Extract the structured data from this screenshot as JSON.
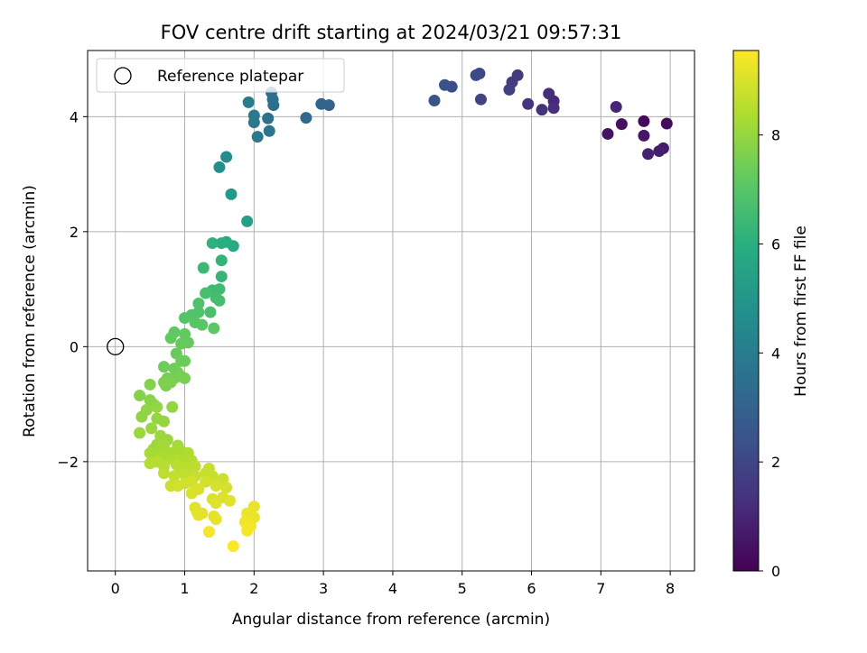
{
  "chart_data": {
    "type": "scatter",
    "title": "FOV centre drift starting at 2024/03/21 09:57:31",
    "xlabel": "Angular distance from reference (arcmin)",
    "ylabel": "Rotation from reference (arcmin)",
    "xlim": [
      -0.4,
      8.35
    ],
    "ylim": [
      -3.9,
      5.15
    ],
    "xticks": [
      0,
      1,
      2,
      3,
      4,
      5,
      6,
      7,
      8
    ],
    "yticks": [
      -2,
      0,
      2,
      4
    ],
    "xtick_labels": [
      "0",
      "1",
      "2",
      "3",
      "4",
      "5",
      "6",
      "7",
      "8"
    ],
    "ytick_labels": [
      "−2",
      "0",
      "2",
      "4"
    ],
    "grid": true,
    "legend": {
      "placement": "top-left",
      "entries": [
        {
          "label": "Reference platepar",
          "marker": "open-circle"
        }
      ]
    },
    "reference_point": {
      "x": 0,
      "y": 0
    },
    "colorbar": {
      "label": "Hours from first FF file",
      "colormap": "viridis",
      "range": [
        0,
        9.55
      ],
      "ticks": [
        0,
        2,
        4,
        6,
        8
      ],
      "tick_labels": [
        "0",
        "2",
        "4",
        "6",
        "8"
      ]
    },
    "points": [
      {
        "x": 7.62,
        "y": 3.92,
        "c": 0.2
      },
      {
        "x": 7.95,
        "y": 3.88,
        "c": 0.3
      },
      {
        "x": 7.3,
        "y": 3.87,
        "c": 0.4
      },
      {
        "x": 7.1,
        "y": 3.7,
        "c": 0.5
      },
      {
        "x": 7.62,
        "y": 3.67,
        "c": 0.6
      },
      {
        "x": 7.9,
        "y": 3.45,
        "c": 0.7
      },
      {
        "x": 7.84,
        "y": 3.4,
        "c": 0.8
      },
      {
        "x": 7.68,
        "y": 3.35,
        "c": 0.9
      },
      {
        "x": 7.22,
        "y": 4.17,
        "c": 1.0
      },
      {
        "x": 6.32,
        "y": 4.27,
        "c": 1.1
      },
      {
        "x": 6.25,
        "y": 4.4,
        "c": 1.2
      },
      {
        "x": 6.32,
        "y": 4.15,
        "c": 1.25
      },
      {
        "x": 6.15,
        "y": 4.12,
        "c": 1.35
      },
      {
        "x": 5.95,
        "y": 4.22,
        "c": 1.45
      },
      {
        "x": 5.8,
        "y": 4.72,
        "c": 1.6
      },
      {
        "x": 5.72,
        "y": 4.6,
        "c": 1.7
      },
      {
        "x": 5.68,
        "y": 4.47,
        "c": 1.8
      },
      {
        "x": 5.27,
        "y": 4.3,
        "c": 1.9
      },
      {
        "x": 5.25,
        "y": 4.75,
        "c": 2.0
      },
      {
        "x": 5.2,
        "y": 4.72,
        "c": 2.1
      },
      {
        "x": 4.85,
        "y": 4.52,
        "c": 2.25
      },
      {
        "x": 4.75,
        "y": 4.55,
        "c": 2.35
      },
      {
        "x": 4.6,
        "y": 4.28,
        "c": 2.5
      },
      {
        "x": 3.08,
        "y": 4.2,
        "c": 3.0
      },
      {
        "x": 2.97,
        "y": 4.22,
        "c": 3.1
      },
      {
        "x": 2.75,
        "y": 3.98,
        "c": 3.2
      },
      {
        "x": 2.25,
        "y": 4.42,
        "c": 3.35
      },
      {
        "x": 2.27,
        "y": 4.3,
        "c": 3.45
      },
      {
        "x": 2.28,
        "y": 4.2,
        "c": 3.5
      },
      {
        "x": 2.2,
        "y": 3.97,
        "c": 3.6
      },
      {
        "x": 2.22,
        "y": 3.75,
        "c": 3.7
      },
      {
        "x": 2.05,
        "y": 3.65,
        "c": 3.8
      },
      {
        "x": 2.0,
        "y": 3.9,
        "c": 3.85
      },
      {
        "x": 2.0,
        "y": 4.02,
        "c": 3.9
      },
      {
        "x": 1.92,
        "y": 4.25,
        "c": 4.0
      },
      {
        "x": 1.6,
        "y": 3.3,
        "c": 4.6
      },
      {
        "x": 1.5,
        "y": 3.12,
        "c": 4.7
      },
      {
        "x": 1.67,
        "y": 2.65,
        "c": 5.1
      },
      {
        "x": 1.9,
        "y": 2.18,
        "c": 5.4
      },
      {
        "x": 1.7,
        "y": 1.75,
        "c": 5.8
      },
      {
        "x": 1.6,
        "y": 1.82,
        "c": 5.9
      },
      {
        "x": 1.53,
        "y": 1.8,
        "c": 6.0
      },
      {
        "x": 1.4,
        "y": 1.8,
        "c": 6.1
      },
      {
        "x": 1.53,
        "y": 1.5,
        "c": 6.2
      },
      {
        "x": 1.53,
        "y": 1.22,
        "c": 6.3
      },
      {
        "x": 1.27,
        "y": 1.37,
        "c": 6.4
      },
      {
        "x": 1.5,
        "y": 1.0,
        "c": 6.5
      },
      {
        "x": 1.4,
        "y": 0.98,
        "c": 6.55
      },
      {
        "x": 1.45,
        "y": 0.85,
        "c": 6.6
      },
      {
        "x": 1.5,
        "y": 0.8,
        "c": 6.65
      },
      {
        "x": 1.3,
        "y": 0.93,
        "c": 6.7
      },
      {
        "x": 1.37,
        "y": 0.6,
        "c": 6.75
      },
      {
        "x": 1.2,
        "y": 0.75,
        "c": 6.8
      },
      {
        "x": 1.2,
        "y": 0.6,
        "c": 6.85
      },
      {
        "x": 1.1,
        "y": 0.55,
        "c": 6.9
      },
      {
        "x": 1.0,
        "y": 0.5,
        "c": 6.95
      },
      {
        "x": 1.15,
        "y": 0.42,
        "c": 7.0
      },
      {
        "x": 1.25,
        "y": 0.38,
        "c": 7.05
      },
      {
        "x": 1.42,
        "y": 0.32,
        "c": 7.1
      },
      {
        "x": 0.85,
        "y": 0.25,
        "c": 7.15
      },
      {
        "x": 0.8,
        "y": 0.15,
        "c": 7.2
      },
      {
        "x": 1.0,
        "y": 0.22,
        "c": 7.2
      },
      {
        "x": 0.95,
        "y": 0.05,
        "c": 7.25
      },
      {
        "x": 1.05,
        "y": 0.07,
        "c": 7.25
      },
      {
        "x": 0.88,
        "y": -0.12,
        "c": 7.3
      },
      {
        "x": 0.95,
        "y": -0.25,
        "c": 7.35
      },
      {
        "x": 1.0,
        "y": -0.25,
        "c": 7.35
      },
      {
        "x": 0.85,
        "y": -0.38,
        "c": 7.4
      },
      {
        "x": 0.7,
        "y": -0.35,
        "c": 7.4
      },
      {
        "x": 0.9,
        "y": -0.45,
        "c": 7.45
      },
      {
        "x": 0.75,
        "y": -0.55,
        "c": 7.5
      },
      {
        "x": 0.85,
        "y": -0.55,
        "c": 7.5
      },
      {
        "x": 0.95,
        "y": -0.52,
        "c": 7.55
      },
      {
        "x": 1.0,
        "y": -0.55,
        "c": 7.55
      },
      {
        "x": 0.7,
        "y": -0.62,
        "c": 7.6
      },
      {
        "x": 0.8,
        "y": -0.62,
        "c": 7.6
      },
      {
        "x": 0.73,
        "y": -0.68,
        "c": 7.65
      },
      {
        "x": 0.5,
        "y": -0.66,
        "c": 7.7
      },
      {
        "x": 0.35,
        "y": -0.85,
        "c": 7.75
      },
      {
        "x": 0.5,
        "y": -0.93,
        "c": 7.8
      },
      {
        "x": 0.55,
        "y": -1.0,
        "c": 7.85
      },
      {
        "x": 0.45,
        "y": -1.1,
        "c": 7.9
      },
      {
        "x": 0.38,
        "y": -1.22,
        "c": 7.9
      },
      {
        "x": 0.6,
        "y": -1.05,
        "c": 7.95
      },
      {
        "x": 0.82,
        "y": -1.05,
        "c": 7.95
      },
      {
        "x": 0.6,
        "y": -1.25,
        "c": 8.0
      },
      {
        "x": 0.7,
        "y": -1.3,
        "c": 8.0
      },
      {
        "x": 0.52,
        "y": -1.42,
        "c": 8.05
      },
      {
        "x": 0.35,
        "y": -1.5,
        "c": 8.05
      },
      {
        "x": 0.65,
        "y": -1.55,
        "c": 8.1
      },
      {
        "x": 0.75,
        "y": -1.62,
        "c": 8.1
      },
      {
        "x": 0.6,
        "y": -1.7,
        "c": 8.15
      },
      {
        "x": 0.55,
        "y": -1.78,
        "c": 8.15
      },
      {
        "x": 0.7,
        "y": -1.72,
        "c": 8.2
      },
      {
        "x": 0.9,
        "y": -1.72,
        "c": 8.2
      },
      {
        "x": 0.5,
        "y": -1.85,
        "c": 8.25
      },
      {
        "x": 0.65,
        "y": -1.88,
        "c": 8.25
      },
      {
        "x": 0.8,
        "y": -1.85,
        "c": 8.3
      },
      {
        "x": 0.95,
        "y": -1.82,
        "c": 8.3
      },
      {
        "x": 1.05,
        "y": -1.85,
        "c": 8.35
      },
      {
        "x": 0.75,
        "y": -1.95,
        "c": 8.35
      },
      {
        "x": 0.85,
        "y": -1.98,
        "c": 8.4
      },
      {
        "x": 1.0,
        "y": -1.92,
        "c": 8.4
      },
      {
        "x": 1.1,
        "y": -1.98,
        "c": 8.45
      },
      {
        "x": 0.5,
        "y": -2.03,
        "c": 8.45
      },
      {
        "x": 0.6,
        "y": -2.0,
        "c": 8.5
      },
      {
        "x": 0.7,
        "y": -2.08,
        "c": 8.5
      },
      {
        "x": 0.88,
        "y": -2.05,
        "c": 8.5
      },
      {
        "x": 0.95,
        "y": -2.1,
        "c": 8.55
      },
      {
        "x": 1.05,
        "y": -2.1,
        "c": 8.55
      },
      {
        "x": 1.15,
        "y": -2.08,
        "c": 8.6
      },
      {
        "x": 0.7,
        "y": -2.2,
        "c": 8.6
      },
      {
        "x": 0.85,
        "y": -2.25,
        "c": 8.65
      },
      {
        "x": 1.0,
        "y": -2.22,
        "c": 8.65
      },
      {
        "x": 1.15,
        "y": -2.25,
        "c": 8.7
      },
      {
        "x": 1.35,
        "y": -2.12,
        "c": 8.7
      },
      {
        "x": 1.3,
        "y": -2.2,
        "c": 8.75
      },
      {
        "x": 1.4,
        "y": -2.25,
        "c": 8.75
      },
      {
        "x": 1.55,
        "y": -2.3,
        "c": 8.8
      },
      {
        "x": 0.8,
        "y": -2.42,
        "c": 8.8
      },
      {
        "x": 0.9,
        "y": -2.42,
        "c": 8.85
      },
      {
        "x": 1.0,
        "y": -2.38,
        "c": 8.85
      },
      {
        "x": 1.1,
        "y": -2.35,
        "c": 8.9
      },
      {
        "x": 1.3,
        "y": -2.35,
        "c": 8.9
      },
      {
        "x": 1.45,
        "y": -2.42,
        "c": 8.95
      },
      {
        "x": 1.6,
        "y": -2.45,
        "c": 8.95
      },
      {
        "x": 1.2,
        "y": -2.48,
        "c": 9.0
      },
      {
        "x": 1.1,
        "y": -2.55,
        "c": 9.0
      },
      {
        "x": 1.4,
        "y": -2.65,
        "c": 9.05
      },
      {
        "x": 1.55,
        "y": -2.62,
        "c": 9.05
      },
      {
        "x": 1.65,
        "y": -2.68,
        "c": 9.1
      },
      {
        "x": 1.45,
        "y": -2.72,
        "c": 9.1
      },
      {
        "x": 1.15,
        "y": -2.8,
        "c": 9.1
      },
      {
        "x": 1.18,
        "y": -2.88,
        "c": 9.15
      },
      {
        "x": 1.25,
        "y": -2.9,
        "c": 9.15
      },
      {
        "x": 1.2,
        "y": -2.93,
        "c": 9.2
      },
      {
        "x": 1.42,
        "y": -2.95,
        "c": 9.2
      },
      {
        "x": 1.45,
        "y": -3.0,
        "c": 9.2
      },
      {
        "x": 2.0,
        "y": -2.78,
        "c": 9.25
      },
      {
        "x": 1.9,
        "y": -2.9,
        "c": 9.3
      },
      {
        "x": 2.0,
        "y": -2.97,
        "c": 9.3
      },
      {
        "x": 1.87,
        "y": -3.05,
        "c": 9.35
      },
      {
        "x": 1.95,
        "y": -3.12,
        "c": 9.4
      },
      {
        "x": 1.9,
        "y": -3.2,
        "c": 9.45
      },
      {
        "x": 1.35,
        "y": -3.22,
        "c": 9.45
      },
      {
        "x": 1.7,
        "y": -3.47,
        "c": 9.5
      }
    ]
  }
}
